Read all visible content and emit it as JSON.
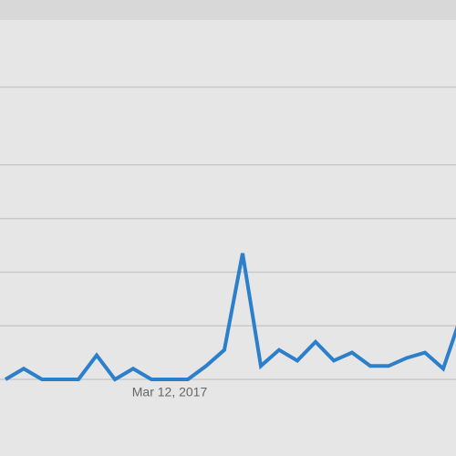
{
  "chart_data": {
    "type": "line",
    "categories": [
      null,
      null,
      null,
      null,
      null,
      null,
      null,
      null,
      null,
      "Mar 12, 2017",
      null,
      null,
      null,
      null,
      null,
      null,
      null,
      null,
      null,
      null,
      null,
      null,
      null,
      null,
      null,
      null
    ],
    "series": [
      {
        "color": "#2b7fcb",
        "values": [
          0,
          4,
          0,
          0,
          0,
          9,
          0,
          4,
          0,
          0,
          0,
          5,
          11,
          47,
          5,
          11,
          7,
          14,
          7,
          10,
          5,
          5,
          8,
          10,
          4,
          24
        ]
      }
    ],
    "ylim": [
      0,
      134
    ],
    "yticks": [
      0,
      20,
      40,
      60,
      80,
      109
    ],
    "grid": true
  }
}
